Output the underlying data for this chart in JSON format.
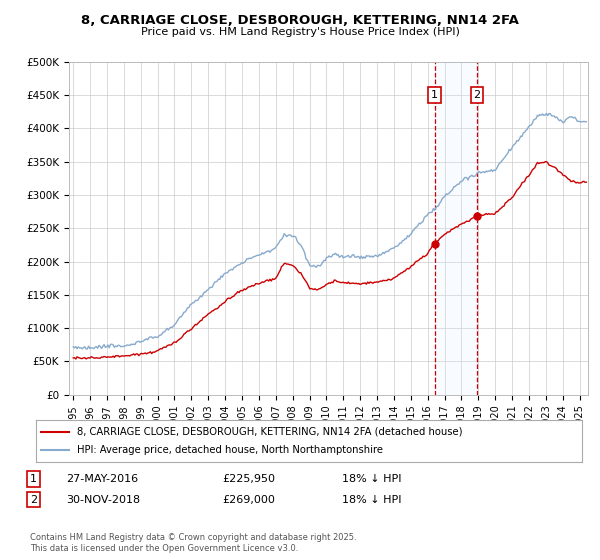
{
  "title": "8, CARRIAGE CLOSE, DESBOROUGH, KETTERING, NN14 2FA",
  "subtitle": "Price paid vs. HM Land Registry's House Price Index (HPI)",
  "legend_label_red": "8, CARRIAGE CLOSE, DESBOROUGH, KETTERING, NN14 2FA (detached house)",
  "legend_label_blue": "HPI: Average price, detached house, North Northamptonshire",
  "annotation1_label": "1",
  "annotation1_date": "27-MAY-2016",
  "annotation1_price": "£225,950",
  "annotation1_hpi": "18% ↓ HPI",
  "annotation2_label": "2",
  "annotation2_date": "30-NOV-2018",
  "annotation2_price": "£269,000",
  "annotation2_hpi": "18% ↓ HPI",
  "footer": "Contains HM Land Registry data © Crown copyright and database right 2025.\nThis data is licensed under the Open Government Licence v3.0.",
  "ylim": [
    0,
    500000
  ],
  "yticks": [
    0,
    50000,
    100000,
    150000,
    200000,
    250000,
    300000,
    350000,
    400000,
    450000,
    500000
  ],
  "xmin": 1994.75,
  "xmax": 2025.5,
  "sale1_x": 2016.41,
  "sale1_y": 225950,
  "sale2_x": 2018.92,
  "sale2_y": 269000,
  "red_color": "#cc0000",
  "blue_color": "#88aacc",
  "shade_color": "#ddeeff",
  "vline_color": "#cc0000",
  "background_color": "#ffffff",
  "grid_color": "#cccccc"
}
